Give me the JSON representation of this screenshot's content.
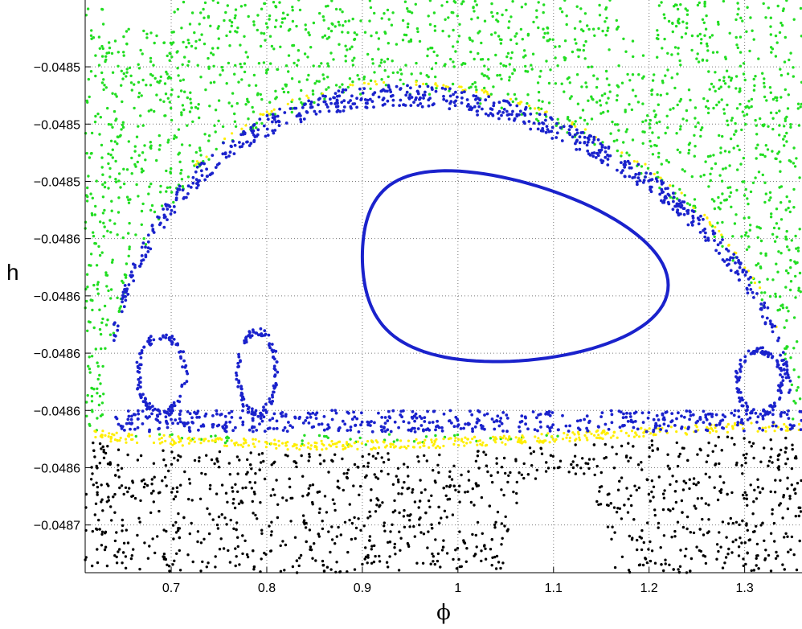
{
  "chart_data": {
    "type": "scatter",
    "title": "",
    "xlabel": "ϕ",
    "ylabel": "h",
    "xlim": [
      0.61,
      1.36
    ],
    "ylim": [
      -0.04872,
      -0.04848
    ],
    "grid": true,
    "x_ticks": [
      {
        "value": 0.7,
        "label": "0.7"
      },
      {
        "value": 0.8,
        "label": "0.8"
      },
      {
        "value": 0.9,
        "label": "0.9"
      },
      {
        "value": 1.0,
        "label": "1"
      },
      {
        "value": 1.1,
        "label": "1.1"
      },
      {
        "value": 1.2,
        "label": "1.2"
      },
      {
        "value": 1.3,
        "label": "1.3"
      }
    ],
    "y_ticks": [
      {
        "value": -0.048508,
        "label": "−0.0485"
      },
      {
        "value": -0.048532,
        "label": "−0.0485"
      },
      {
        "value": -0.048556,
        "label": "−0.0485"
      },
      {
        "value": -0.04858,
        "label": "−0.0486"
      },
      {
        "value": -0.048604,
        "label": "−0.0486"
      },
      {
        "value": -0.048628,
        "label": "−0.0486"
      },
      {
        "value": -0.048652,
        "label": "−0.0486"
      },
      {
        "value": -0.048676,
        "label": "−0.0486"
      },
      {
        "value": -0.0487,
        "label": "−0.0487"
      }
    ],
    "colors": {
      "chaotic_upper": "#22dd22",
      "chaotic_lower": "#000000",
      "island_chain": "#1a22cc",
      "separatrix": "#ffee00",
      "invariant_curve": "#1a22cc"
    },
    "series": [
      {
        "marker": "green-dots",
        "region": "chaotic sea above the resonance",
        "x_range": [
          0.61,
          1.36
        ],
        "y_range": [
          -0.048672,
          -0.04848
        ]
      },
      {
        "marker": "black-dots",
        "region": "chaotic sea below the resonance",
        "x_range": [
          0.61,
          1.36
        ],
        "y_range": [
          -0.04872,
          -0.048666
        ]
      },
      {
        "marker": "blue-closed-curve",
        "region": "invariant curve around the center",
        "center": [
          1.03,
          -0.048597
        ],
        "x_range": [
          0.873,
          1.19
        ],
        "y_range": [
          -0.048635,
          -0.048552
        ]
      },
      {
        "marker": "blue-dots",
        "region": "island chain / separatrix layer",
        "x_range": [
          0.625,
          1.36
        ],
        "y_range": [
          -0.048665,
          -0.048518
        ]
      },
      {
        "marker": "yellow-dots",
        "region": "separatrix layer",
        "x_range": [
          0.625,
          1.36
        ],
        "y_range": [
          -0.048668,
          -0.04852
        ]
      }
    ]
  }
}
